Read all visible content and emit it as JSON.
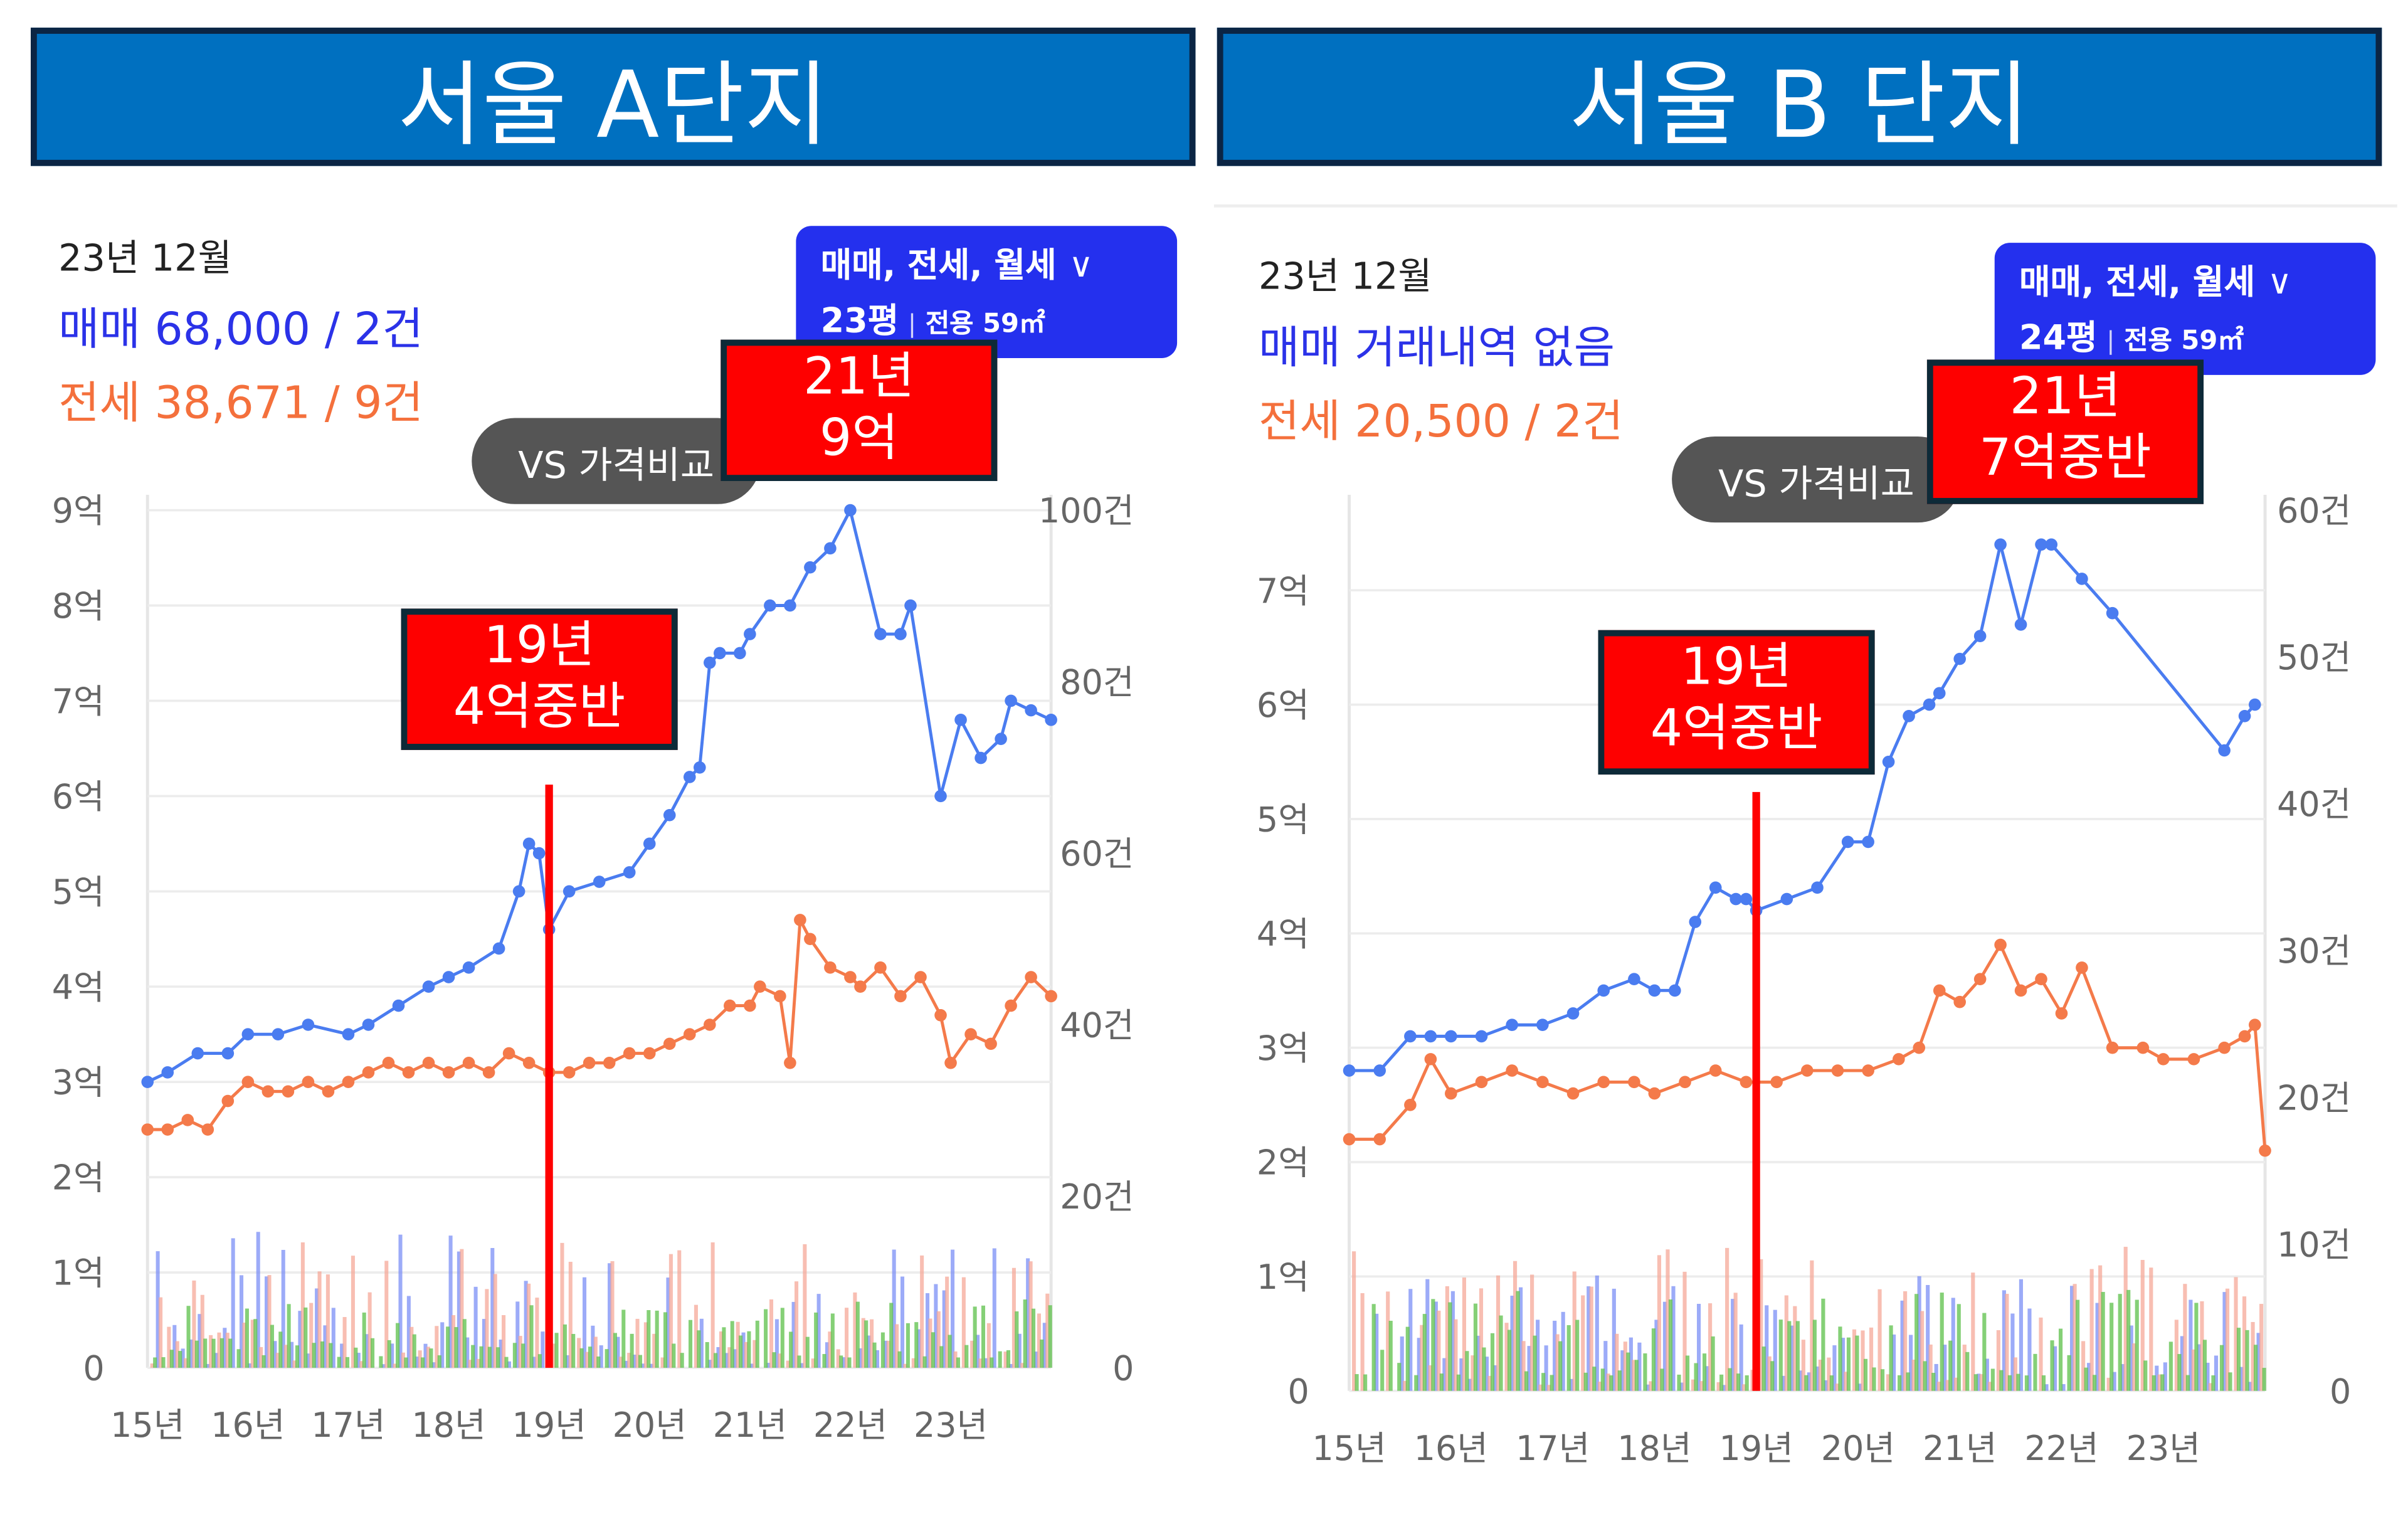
{
  "panels": [
    {
      "title": "서울 A단지",
      "period": "23년 12월",
      "sale_line": "매매 68,000 / 2건",
      "jeonse_line": "전세 38,671 / 9건",
      "filter_types": "매매, 전세, 월세",
      "filter_pyeong": "23평",
      "filter_area": "전용 59㎡",
      "vs_button": "VS 가격비교",
      "callouts": [
        {
          "line1": "19년",
          "line2": "4억중반"
        },
        {
          "line1": "21년",
          "line2": "9억"
        }
      ]
    },
    {
      "title": "서울 B 단지",
      "period": "23년 12월",
      "sale_line": "매매 거래내역 없음",
      "jeonse_line": "전세 20,500 / 2건",
      "filter_types": "매매, 전세, 월세",
      "filter_pyeong": "24평",
      "filter_area": "전용 59㎡",
      "vs_button": "VS 가격비교",
      "callouts": [
        {
          "line1": "19년",
          "line2": "4억중반"
        },
        {
          "line1": "21년",
          "line2": "7억중반"
        }
      ]
    }
  ],
  "colors": {
    "banner": "#0070C0",
    "sale": "#4a7cf0",
    "jeonse": "#f47a4a",
    "volume_sale": "#7b8ff5",
    "volume_jeonse": "#f6a898",
    "volume_wolse": "#5cc04a",
    "callout": "#fe0000",
    "marker": "#ff0000"
  },
  "chart_data": [
    {
      "type": "line",
      "x_categories": [
        "15년",
        "16년",
        "17년",
        "18년",
        "19년",
        "20년",
        "21년",
        "22년",
        "23년"
      ],
      "y_left_ticks": [
        "0",
        "1억",
        "2억",
        "3억",
        "4억",
        "5억",
        "6억",
        "7억",
        "8억",
        "9억"
      ],
      "y_left_max": 9,
      "y_right_ticks": [
        "0",
        "20건",
        "40건",
        "60건",
        "80건",
        "100건"
      ],
      "y_right_max": 100,
      "x_end": 24.0,
      "marker_x": 19.0,
      "series": [
        {
          "role": "sale",
          "unit": "억",
          "x": [
            15.0,
            15.2,
            15.5,
            15.8,
            16.0,
            16.3,
            16.6,
            17.0,
            17.2,
            17.5,
            17.8,
            18.0,
            18.2,
            18.5,
            18.7,
            18.8,
            18.9,
            19.0,
            19.2,
            19.5,
            19.8,
            20.0,
            20.2,
            20.4,
            20.5,
            20.6,
            20.7,
            20.9,
            21.0,
            21.2,
            21.4,
            21.6,
            21.8,
            22.0,
            22.3,
            22.5,
            22.6,
            22.9,
            23.1,
            23.3,
            23.5,
            23.6,
            23.8,
            24.0
          ],
          "y": [
            3.0,
            3.1,
            3.3,
            3.3,
            3.5,
            3.5,
            3.6,
            3.5,
            3.6,
            3.8,
            4.0,
            4.1,
            4.2,
            4.4,
            5.0,
            5.5,
            5.4,
            4.6,
            5.0,
            5.1,
            5.2,
            5.5,
            5.8,
            6.2,
            6.3,
            7.4,
            7.5,
            7.5,
            7.7,
            8.0,
            8.0,
            8.4,
            8.6,
            9.0,
            7.7,
            7.7,
            8.0,
            6.0,
            6.8,
            6.4,
            6.6,
            7.0,
            6.9,
            6.8
          ]
        },
        {
          "role": "jeonse",
          "unit": "억",
          "x": [
            15.0,
            15.2,
            15.4,
            15.6,
            15.8,
            16.0,
            16.2,
            16.4,
            16.6,
            16.8,
            17.0,
            17.2,
            17.4,
            17.6,
            17.8,
            18.0,
            18.2,
            18.4,
            18.6,
            18.8,
            19.0,
            19.2,
            19.4,
            19.6,
            19.8,
            20.0,
            20.2,
            20.4,
            20.6,
            20.8,
            21.0,
            21.1,
            21.3,
            21.4,
            21.5,
            21.6,
            21.8,
            22.0,
            22.1,
            22.3,
            22.5,
            22.7,
            22.9,
            23.0,
            23.2,
            23.4,
            23.6,
            23.8,
            24.0
          ],
          "y": [
            2.5,
            2.5,
            2.6,
            2.5,
            2.8,
            3.0,
            2.9,
            2.9,
            3.0,
            2.9,
            3.0,
            3.1,
            3.2,
            3.1,
            3.2,
            3.1,
            3.2,
            3.1,
            3.3,
            3.2,
            3.1,
            3.1,
            3.2,
            3.2,
            3.3,
            3.3,
            3.4,
            3.5,
            3.6,
            3.8,
            3.8,
            4.0,
            3.9,
            3.2,
            4.7,
            4.5,
            4.2,
            4.1,
            4.0,
            4.2,
            3.9,
            4.1,
            3.7,
            3.2,
            3.5,
            3.4,
            3.8,
            4.1,
            3.9
          ]
        },
        {
          "role": "volume_sale",
          "unit": "건",
          "bars_per_year": 12,
          "peak": 16
        },
        {
          "role": "volume_jeonse",
          "unit": "건",
          "bars_per_year": 12,
          "peak": 15
        },
        {
          "role": "volume_wolse",
          "unit": "건",
          "bars_per_year": 12,
          "peak": 8
        }
      ]
    },
    {
      "type": "line",
      "x_categories": [
        "15년",
        "16년",
        "17년",
        "18년",
        "19년",
        "20년",
        "21년",
        "22년",
        "23년"
      ],
      "y_left_ticks": [
        "0",
        "1억",
        "2억",
        "3억",
        "4억",
        "5억",
        "6억",
        "7억"
      ],
      "y_left_max": 7.7,
      "y_right_ticks": [
        "0",
        "10건",
        "20건",
        "30건",
        "40건",
        "50건",
        "60건"
      ],
      "y_right_max": 60,
      "x_end": 24.0,
      "marker_x": 19.0,
      "series": [
        {
          "role": "sale",
          "unit": "억",
          "x": [
            15.0,
            15.3,
            15.6,
            15.8,
            16.0,
            16.3,
            16.6,
            16.9,
            17.2,
            17.5,
            17.8,
            18.0,
            18.2,
            18.4,
            18.6,
            18.8,
            18.9,
            19.0,
            19.3,
            19.6,
            19.9,
            20.1,
            20.3,
            20.5,
            20.7,
            20.8,
            21.0,
            21.2,
            21.4,
            21.6,
            21.8,
            21.9,
            22.2,
            22.5,
            23.6,
            23.8,
            23.9
          ],
          "y": [
            2.8,
            2.8,
            3.1,
            3.1,
            3.1,
            3.1,
            3.2,
            3.2,
            3.3,
            3.5,
            3.6,
            3.5,
            3.5,
            4.1,
            4.4,
            4.3,
            4.3,
            4.2,
            4.3,
            4.4,
            4.8,
            4.8,
            5.5,
            5.9,
            6.0,
            6.1,
            6.4,
            6.6,
            7.4,
            6.7,
            7.4,
            7.4,
            7.1,
            6.8,
            5.6,
            5.9,
            6.0
          ]
        },
        {
          "role": "jeonse",
          "unit": "억",
          "x": [
            15.0,
            15.3,
            15.6,
            15.8,
            16.0,
            16.3,
            16.6,
            16.9,
            17.2,
            17.5,
            17.8,
            18.0,
            18.3,
            18.6,
            18.9,
            19.2,
            19.5,
            19.8,
            20.1,
            20.4,
            20.6,
            20.8,
            21.0,
            21.2,
            21.4,
            21.6,
            21.8,
            22.0,
            22.2,
            22.5,
            22.8,
            23.0,
            23.3,
            23.6,
            23.8,
            23.9,
            24.0
          ],
          "y": [
            2.2,
            2.2,
            2.5,
            2.9,
            2.6,
            2.7,
            2.8,
            2.7,
            2.6,
            2.7,
            2.7,
            2.6,
            2.7,
            2.8,
            2.7,
            2.7,
            2.8,
            2.8,
            2.8,
            2.9,
            3.0,
            3.5,
            3.4,
            3.6,
            3.9,
            3.5,
            3.6,
            3.3,
            3.7,
            3.0,
            3.0,
            2.9,
            2.9,
            3.0,
            3.1,
            3.2,
            2.1
          ]
        },
        {
          "role": "volume_sale",
          "unit": "건",
          "bars_per_year": 12,
          "peak": 8
        },
        {
          "role": "volume_jeonse",
          "unit": "건",
          "bars_per_year": 12,
          "peak": 10
        },
        {
          "role": "volume_wolse",
          "unit": "건",
          "bars_per_year": 12,
          "peak": 7
        }
      ]
    }
  ]
}
